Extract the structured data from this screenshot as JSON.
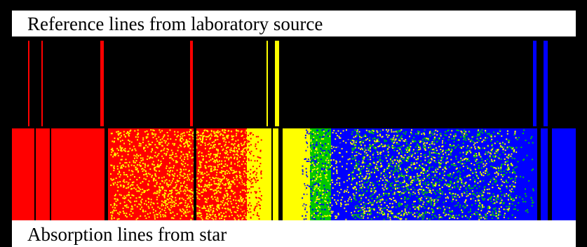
{
  "labels": {
    "reference": "Reference lines from laboratory source",
    "absorption": "Absorption lines from star"
  },
  "colors": {
    "background": "#000000",
    "red": "#ff0000",
    "yellow": "#ffff00",
    "green": "#00c800",
    "blue": "#0000ff",
    "absorption_line": "#000000"
  }
}
